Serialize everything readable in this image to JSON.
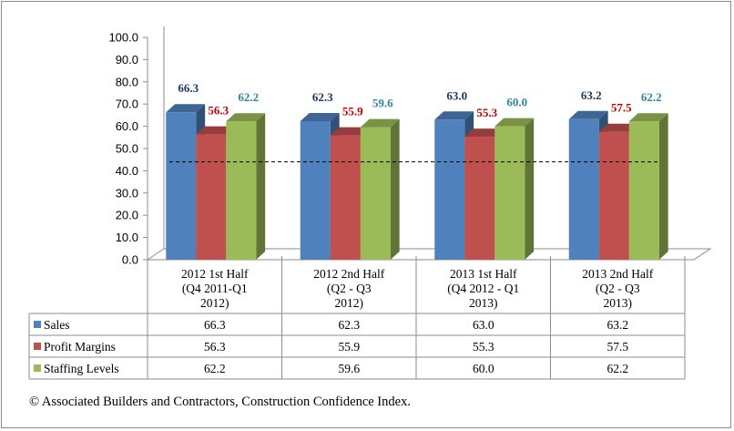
{
  "chart_data": {
    "type": "bar",
    "categories": [
      [
        "2012 1st Half",
        "(Q4 2011-Q1",
        "2012)"
      ],
      [
        "2012 2nd Half",
        "(Q2 - Q3",
        "2012)"
      ],
      [
        "2013 1st Half",
        "(Q4 2012 - Q1",
        "2013)"
      ],
      [
        "2013 2nd Half",
        "(Q2 - Q3",
        "2013)"
      ]
    ],
    "series": [
      {
        "name": "Sales",
        "values": [
          66.3,
          62.3,
          63.0,
          63.2
        ],
        "labels": [
          "66.3",
          "62.3",
          "63.0",
          "63.2"
        ],
        "color": "#4f81bd",
        "label_color": "#1f3864"
      },
      {
        "name": "Profit Margins",
        "values": [
          56.3,
          55.9,
          55.3,
          57.5
        ],
        "labels": [
          "56.3",
          "55.9",
          "55.3",
          "57.5"
        ],
        "color": "#c0504d",
        "label_color": "#c00000"
      },
      {
        "name": "Staffing Levels",
        "values": [
          62.2,
          59.6,
          60.0,
          62.2
        ],
        "labels": [
          "62.2",
          "59.6",
          "60.0",
          "62.2"
        ],
        "color": "#9bbb59",
        "label_color": "#31859c"
      }
    ],
    "ylim": [
      0,
      100
    ],
    "yticks": [
      "0.0",
      "10.0",
      "20.0",
      "30.0",
      "40.0",
      "50.0",
      "60.0",
      "70.0",
      "80.0",
      "90.0",
      "100.0"
    ],
    "reference_line": 44,
    "grid": false,
    "data_table": true,
    "legend": "data-table"
  },
  "footer": {
    "copyright": "© Associated Builders and Contractors, Construction Confidence Index."
  }
}
